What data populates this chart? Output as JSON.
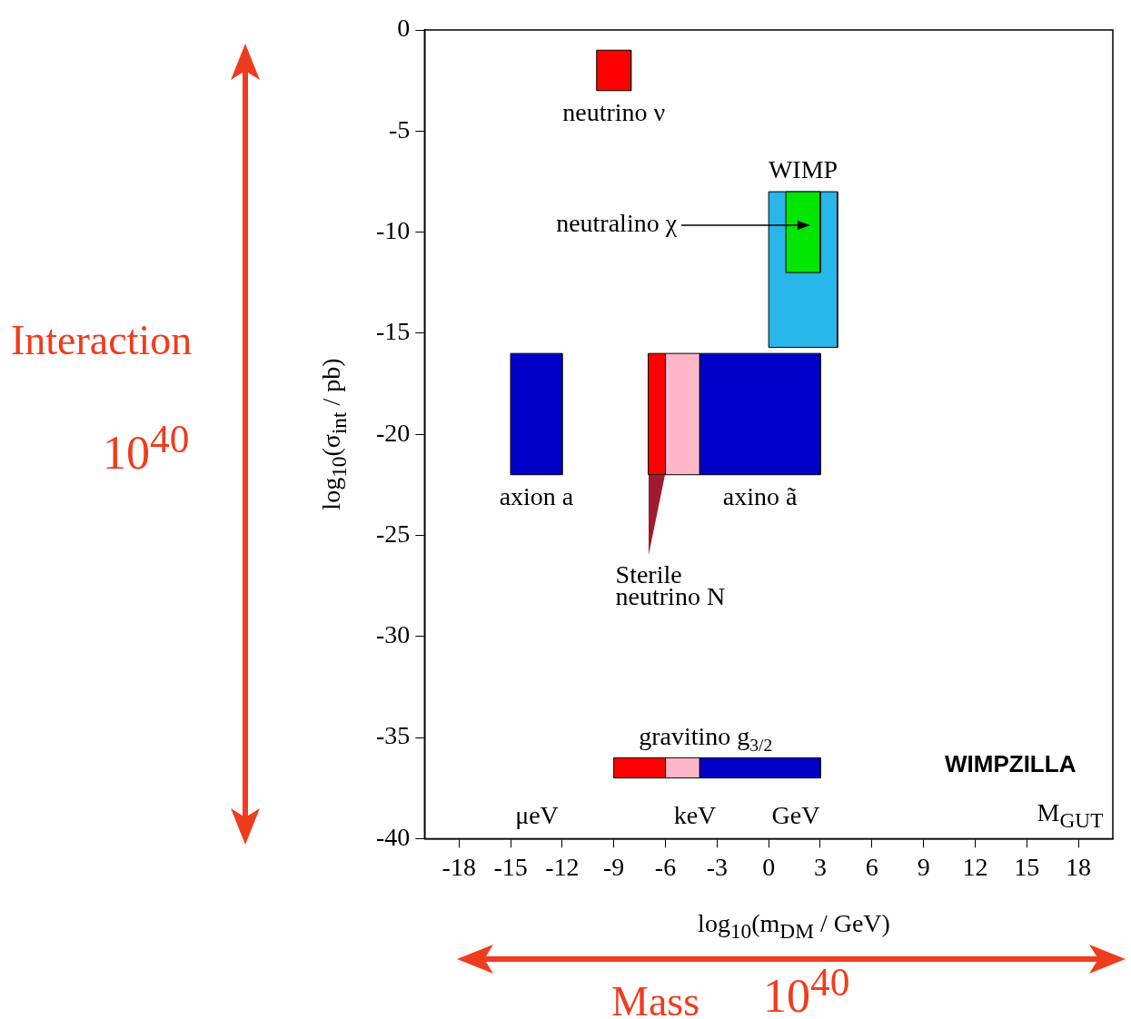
{
  "chart_data": {
    "type": "area",
    "xlabel": "log$_{10}$(m$_{DM}$ / GeV)",
    "ylabel": "log$_{10}$(σ$_{int}$ / pb)",
    "xlim": [
      -20,
      20
    ],
    "xticks": [
      -18,
      -15,
      -12,
      -9,
      -6,
      -3,
      0,
      3,
      6,
      9,
      12,
      15,
      18
    ],
    "ylim": [
      -40,
      0
    ],
    "yticks": [
      -40,
      -35,
      -30,
      -25,
      -20,
      -15,
      -10,
      -5,
      0
    ],
    "marker": "none",
    "series": [
      {
        "name": "neutrino ν",
        "color": "#ff0000",
        "x": [
          -10,
          -8,
          -8,
          -10,
          -10
        ],
        "values": [
          -1,
          -1,
          -3,
          -3,
          -1
        ]
      },
      {
        "name": "WIMP",
        "color": "#29b6e8",
        "x": [
          0,
          4,
          4,
          0,
          0
        ],
        "values": [
          -8,
          -8,
          -15.7,
          -15.7,
          -8
        ]
      },
      {
        "color": "#00e600",
        "x": [
          1,
          3,
          3,
          1,
          1
        ],
        "values": [
          -8,
          -8,
          -12,
          -12,
          -8
        ]
      },
      {
        "name": "axion a",
        "color": "#0000c8",
        "x": [
          -15,
          -12,
          -12,
          -15,
          -15
        ],
        "values": [
          -16,
          -16,
          -22,
          -22,
          -16
        ]
      },
      {
        "name": "Sterile neutrino N",
        "color": "#ff0000",
        "x": [
          -7,
          -6,
          -6,
          -7,
          -7
        ],
        "values": [
          -16,
          -16,
          -22,
          -22,
          -16
        ]
      },
      {
        "color": "#ffb6c8",
        "x": [
          -6,
          -4,
          -4,
          -6,
          -6
        ],
        "values": [
          -16,
          -16,
          -22,
          -22,
          -16
        ]
      },
      {
        "name": "axino ã",
        "color": "#0000c8",
        "x": [
          -4,
          3,
          3,
          -4,
          -4
        ],
        "values": [
          -16,
          -16,
          -22,
          -22,
          -16
        ]
      },
      {
        "color": "#ff0000",
        "x": [
          -9,
          -6,
          -6,
          -9,
          -9
        ],
        "values": [
          -36,
          -36,
          -37,
          -37,
          -36
        ]
      },
      {
        "color": "#ffb6c8",
        "x": [
          -6,
          -4,
          -4,
          -6,
          -6
        ],
        "values": [
          -36,
          -36,
          -37,
          -37,
          -36
        ]
      },
      {
        "name": "gravitino g$_{3/2}$",
        "color": "#0000c8",
        "x": [
          -4,
          3,
          3,
          -4,
          -4
        ],
        "values": [
          -36,
          -36,
          -37,
          -37,
          -36
        ]
      }
    ],
    "annotations": [
      "μeV",
      "keV",
      "GeV",
      "M$_{GUT}$",
      "WIMPZILLA",
      "Interaction",
      "10$^{40}$",
      "Mass",
      "10$^{40}$",
      "neutralino χ"
    ]
  }
}
